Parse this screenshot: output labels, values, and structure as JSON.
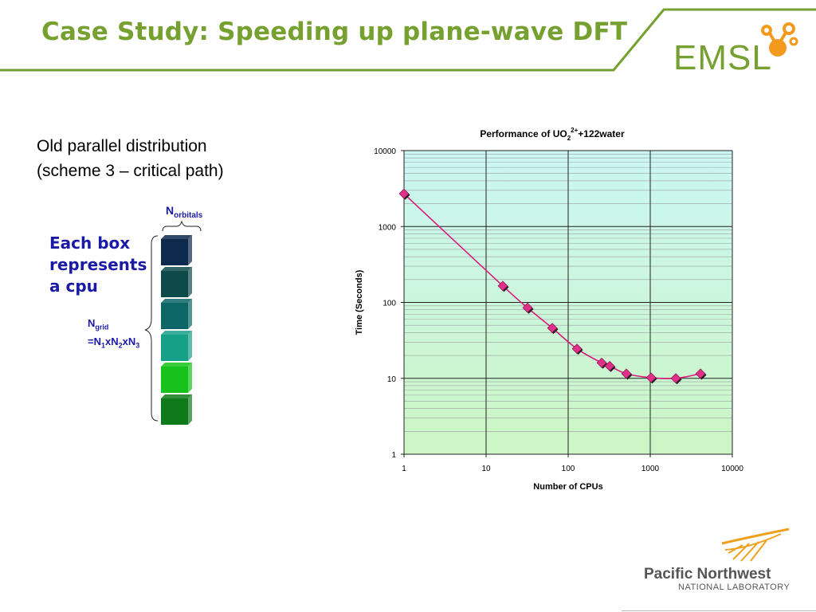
{
  "slide": {
    "title": "Case Study: Speeding up plane-wave DFT",
    "subtitle_line1": "Old parallel distribution",
    "subtitle_line2": "(scheme 3 – critical path)",
    "each_box_line1": "Each box",
    "each_box_line2": "represents",
    "each_box_line3": "a cpu",
    "n_orbitals_main": "N",
    "n_orbitals_sub": "orbitals",
    "n_grid_main": "N",
    "n_grid_sub": "grid",
    "n_grid_eq": "=N",
    "n_grid_x2": "xN",
    "n_grid_x3": "xN",
    "n_sub1": "1",
    "n_sub2": "2",
    "n_sub3": "3"
  },
  "logos": {
    "emsl": "EMSL",
    "pnnl_name": "Pacific Northwest",
    "pnnl_sub": "NATIONAL LABORATORY",
    "accent_color": "#76a030",
    "emsl_mark_color": "#f39a1e"
  },
  "cpu_boxes": {
    "colors": [
      "#0e2a4c",
      "#0f4a4a",
      "#0d6666",
      "#17a088",
      "#18c21c",
      "#0f7a1a"
    ]
  },
  "chart_data": {
    "type": "scatter",
    "title_prefix": "Performance of UO",
    "title_sub": "2",
    "title_sup": "2+",
    "title_suffix": "+122water",
    "xlabel": "Number of CPUs",
    "ylabel": "Time (Seconds)",
    "x_scale": "log",
    "y_scale": "log",
    "xlim": [
      1,
      10000
    ],
    "ylim": [
      1,
      10000
    ],
    "x_ticks": [
      "1",
      "10",
      "100",
      "1000",
      "10000"
    ],
    "y_ticks": [
      "1",
      "10",
      "100",
      "1000",
      "10000"
    ],
    "grid": true,
    "series": [
      {
        "color": "#d81b7a",
        "marker_color": "#e0308a",
        "x": [
          1,
          16,
          32,
          64,
          128,
          256,
          320,
          512,
          1024,
          2048,
          4096
        ],
        "y": [
          2700,
          165,
          85,
          46,
          24.5,
          16,
          14.5,
          11.5,
          10.2,
          10,
          11.5
        ]
      }
    ],
    "legend": "none"
  }
}
